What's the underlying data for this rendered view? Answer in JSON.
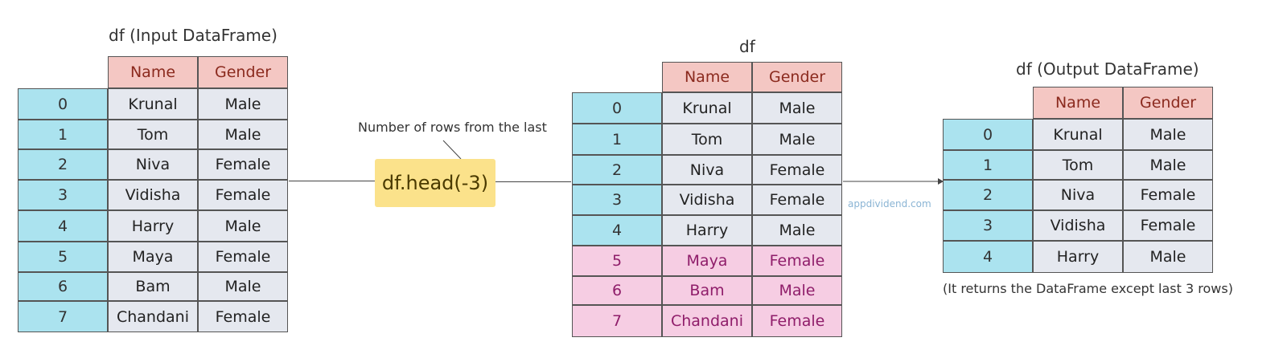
{
  "input_table": {
    "title": "df (Input DataFrame)",
    "columns": [
      "Name",
      "Gender"
    ],
    "rows": [
      {
        "index": "0",
        "name": "Krunal",
        "gender": "Male"
      },
      {
        "index": "1",
        "name": "Tom",
        "gender": "Male"
      },
      {
        "index": "2",
        "name": "Niva",
        "gender": "Female"
      },
      {
        "index": "3",
        "name": "Vidisha",
        "gender": "Female"
      },
      {
        "index": "4",
        "name": "Harry",
        "gender": "Male"
      },
      {
        "index": "5",
        "name": "Maya",
        "gender": "Female"
      },
      {
        "index": "6",
        "name": "Bam",
        "gender": "Male"
      },
      {
        "index": "7",
        "name": "Chandani",
        "gender": "Female"
      }
    ]
  },
  "operation": {
    "code": "df.head(-3)",
    "annotation": "Number of rows from the last"
  },
  "middle_table": {
    "title": "df",
    "columns": [
      "Name",
      "Gender"
    ],
    "rows": [
      {
        "index": "0",
        "name": "Krunal",
        "gender": "Male"
      },
      {
        "index": "1",
        "name": "Tom",
        "gender": "Male"
      },
      {
        "index": "2",
        "name": "Niva",
        "gender": "Female"
      },
      {
        "index": "3",
        "name": "Vidisha",
        "gender": "Female"
      },
      {
        "index": "4",
        "name": "Harry",
        "gender": "Male"
      },
      {
        "index": "5",
        "name": "Maya",
        "gender": "Female",
        "highlighted": true
      },
      {
        "index": "6",
        "name": "Bam",
        "gender": "Male",
        "highlighted": true
      },
      {
        "index": "7",
        "name": "Chandani",
        "gender": "Female",
        "highlighted": true
      }
    ]
  },
  "output_table": {
    "title": "df (Output DataFrame)",
    "columns": [
      "Name",
      "Gender"
    ],
    "rows": [
      {
        "index": "0",
        "name": "Krunal",
        "gender": "Male"
      },
      {
        "index": "1",
        "name": "Tom",
        "gender": "Male"
      },
      {
        "index": "2",
        "name": "Niva",
        "gender": "Female"
      },
      {
        "index": "3",
        "name": "Vidisha",
        "gender": "Female"
      },
      {
        "index": "4",
        "name": "Harry",
        "gender": "Male"
      }
    ],
    "caption": "(It returns the DataFrame except last 3 rows)"
  },
  "watermark": "appdividend.com",
  "colors": {
    "header": "#f4c7c3",
    "index": "#abe3ef",
    "cell": "#e5e8ef",
    "highlight": "#f6cde3",
    "operation": "#fbe28b"
  }
}
